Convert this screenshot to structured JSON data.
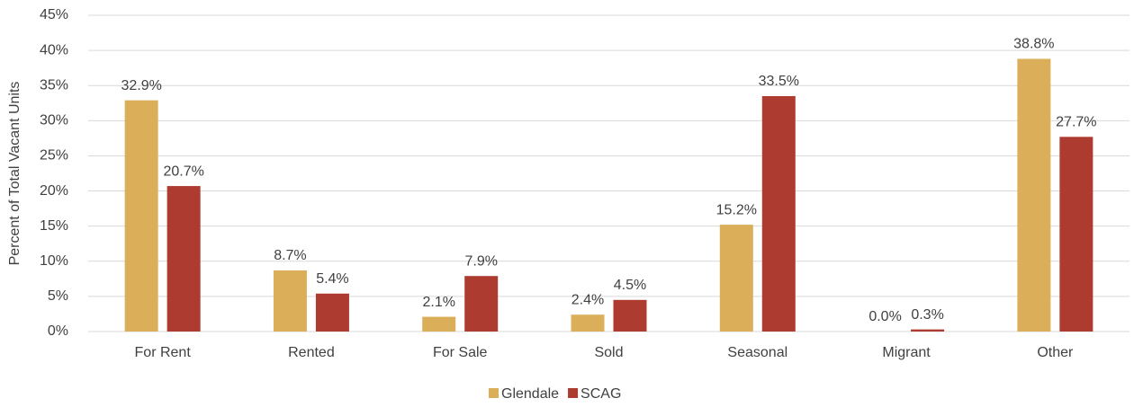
{
  "chart_data": {
    "type": "bar",
    "y_label": "Percent of Total Vacant Units",
    "categories": [
      "For Rent",
      "Rented",
      "For Sale",
      "Sold",
      "Seasonal",
      "Migrant",
      "Other"
    ],
    "series": [
      {
        "name": "Glendale",
        "color": "#dbae5a",
        "values": [
          32.9,
          8.7,
          2.1,
          2.4,
          15.2,
          0.0,
          38.8
        ],
        "value_labels": [
          "32.9%",
          "8.7%",
          "2.1%",
          "2.4%",
          "15.2%",
          "0.0%",
          "38.8%"
        ]
      },
      {
        "name": "SCAG",
        "color": "#ae3b2f",
        "values": [
          20.7,
          5.4,
          7.9,
          4.5,
          33.5,
          0.3,
          27.7
        ],
        "value_labels": [
          "20.7%",
          "5.4%",
          "7.9%",
          "4.5%",
          "33.5%",
          "0.3%",
          "27.7%"
        ]
      }
    ],
    "ylim": [
      0,
      45
    ],
    "yticks": [
      {
        "value": 0,
        "label": "0%"
      },
      {
        "value": 5,
        "label": "5%"
      },
      {
        "value": 10,
        "label": "10%"
      },
      {
        "value": 15,
        "label": "15%"
      },
      {
        "value": 20,
        "label": "20%"
      },
      {
        "value": 25,
        "label": "25%"
      },
      {
        "value": 30,
        "label": "30%"
      },
      {
        "value": 35,
        "label": "35%"
      },
      {
        "value": 40,
        "label": "40%"
      },
      {
        "value": 45,
        "label": "45%"
      }
    ],
    "grid": true,
    "legend": "bottom"
  }
}
